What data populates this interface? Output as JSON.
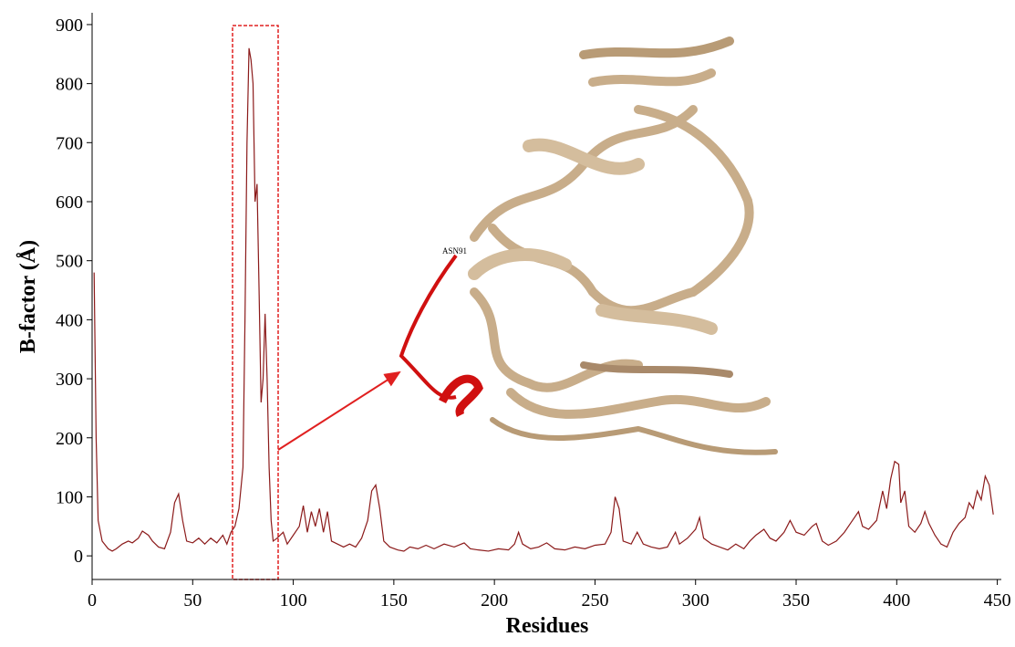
{
  "chart_data": {
    "type": "line",
    "x_label": "Residues",
    "y_label": "B-factor (Å)",
    "annotation": "ASN91",
    "color": "#8b1a1a",
    "xlim": [
      0,
      452
    ],
    "ylim": [
      -40,
      920
    ],
    "xticks": [
      0,
      50,
      100,
      150,
      200,
      250,
      300,
      350,
      400,
      450
    ],
    "yticks": [
      0,
      100,
      200,
      300,
      400,
      500,
      600,
      700,
      800,
      900
    ],
    "x": [
      1,
      2,
      3,
      5,
      8,
      10,
      12,
      15,
      18,
      20,
      23,
      25,
      28,
      30,
      33,
      36,
      39,
      41,
      43,
      45,
      47,
      50,
      53,
      56,
      59,
      62,
      65,
      67,
      69,
      71,
      73,
      75,
      76,
      77,
      78,
      79,
      80,
      81,
      82,
      83,
      84,
      85,
      86,
      87,
      88,
      89,
      90,
      92,
      95,
      97,
      100,
      103,
      105,
      107,
      109,
      111,
      113,
      115,
      117,
      119,
      122,
      125,
      128,
      131,
      134,
      137,
      139,
      141,
      143,
      145,
      148,
      152,
      155,
      158,
      162,
      166,
      170,
      175,
      180,
      185,
      188,
      192,
      197,
      202,
      207,
      210,
      212,
      214,
      218,
      222,
      226,
      230,
      235,
      240,
      245,
      250,
      255,
      258,
      260,
      262,
      264,
      268,
      271,
      274,
      278,
      282,
      286,
      290,
      292,
      296,
      300,
      302,
      304,
      308,
      312,
      316,
      320,
      324,
      327,
      330,
      334,
      337,
      340,
      344,
      347,
      350,
      354,
      358,
      360,
      363,
      366,
      370,
      374,
      378,
      381,
      383,
      386,
      390,
      393,
      395,
      397,
      399,
      401,
      402,
      404,
      406,
      409,
      412,
      414,
      416,
      419,
      422,
      425,
      428,
      431,
      434,
      436,
      438,
      440,
      442,
      444,
      446,
      448
    ],
    "values": [
      480,
      200,
      60,
      25,
      12,
      8,
      12,
      20,
      25,
      22,
      30,
      42,
      35,
      25,
      15,
      12,
      40,
      90,
      105,
      60,
      25,
      22,
      30,
      20,
      30,
      22,
      35,
      20,
      40,
      50,
      80,
      150,
      400,
      700,
      860,
      840,
      800,
      600,
      630,
      450,
      260,
      300,
      410,
      300,
      150,
      60,
      25,
      30,
      40,
      20,
      35,
      50,
      85,
      40,
      75,
      50,
      80,
      40,
      75,
      25,
      20,
      15,
      20,
      15,
      30,
      60,
      110,
      120,
      80,
      25,
      15,
      10,
      8,
      15,
      12,
      18,
      12,
      20,
      15,
      22,
      12,
      10,
      8,
      12,
      10,
      20,
      40,
      20,
      12,
      15,
      22,
      12,
      10,
      15,
      12,
      18,
      20,
      40,
      100,
      80,
      25,
      20,
      40,
      20,
      15,
      12,
      15,
      40,
      20,
      30,
      45,
      65,
      30,
      20,
      15,
      10,
      20,
      12,
      25,
      35,
      45,
      30,
      25,
      40,
      60,
      40,
      35,
      50,
      55,
      25,
      18,
      25,
      40,
      60,
      75,
      50,
      45,
      60,
      110,
      80,
      130,
      160,
      155,
      90,
      110,
      50,
      40,
      55,
      75,
      55,
      35,
      20,
      15,
      40,
      55,
      65,
      90,
      80,
      110,
      95,
      135,
      120,
      70
    ]
  }
}
